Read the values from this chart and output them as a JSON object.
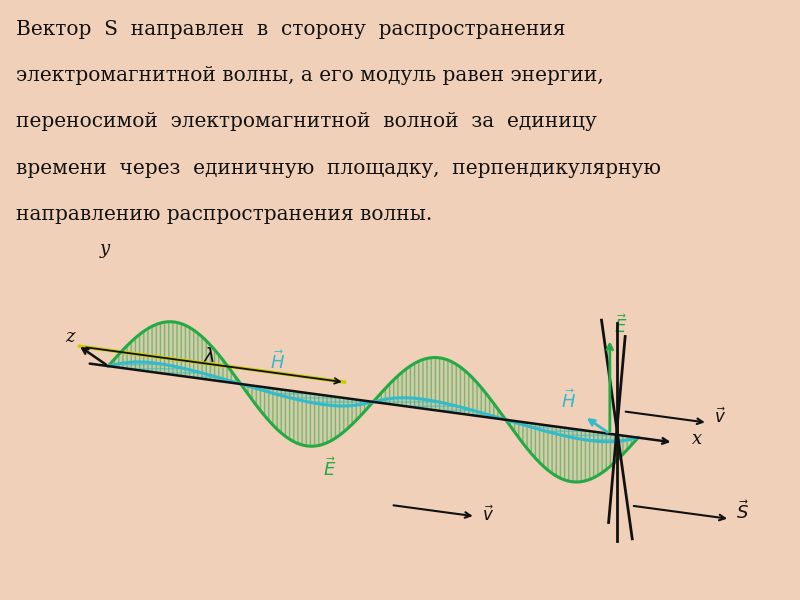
{
  "bg_outer": "#f0d0b8",
  "bg_diagram": "#ffffff",
  "text_color": "#111111",
  "E_color": "#22aa44",
  "H_color": "#33bbcc",
  "axis_color": "#111111",
  "lambda_color": "#cccc00",
  "title_lines": [
    "Вектор  S  направлен  в  сторону  распространения",
    "электромагнитной волны, а его модуль равен энергии,",
    "переносимой  электромагнитной  волной  за  единицу",
    "времени  через  единичную  площадку,  перпендикулярную",
    "направлению распространения волны."
  ],
  "font_size": 14.5
}
